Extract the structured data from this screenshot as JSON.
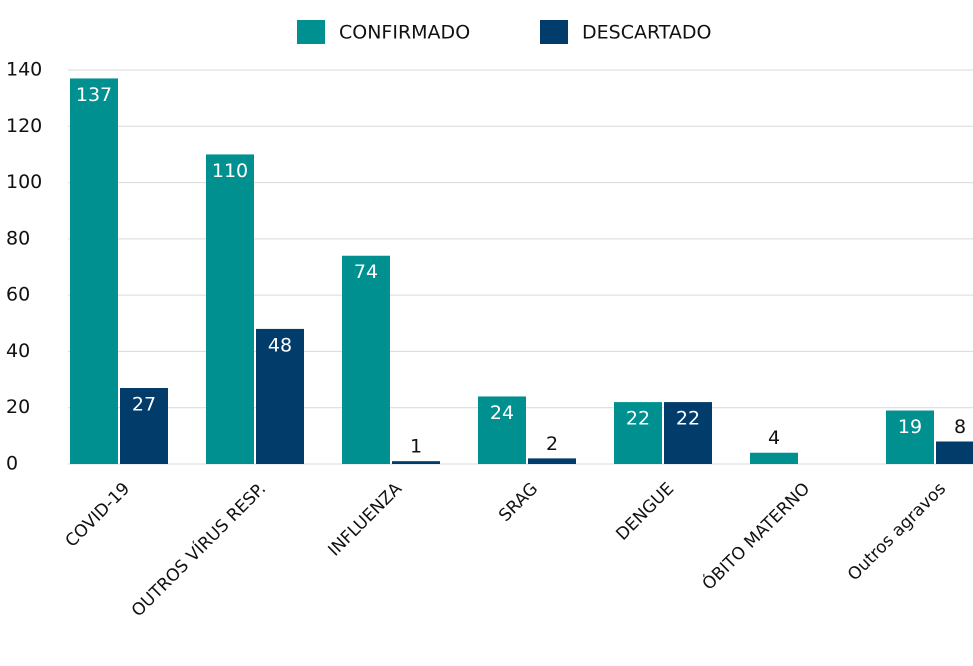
{
  "chart_data": {
    "type": "bar",
    "categories": [
      "COVID-19",
      "OUTROS VÍRUS RESP.",
      "INFLUENZA",
      "SRAG",
      "DENGUE",
      "ÓBITO MATERNO",
      "Outros agravos"
    ],
    "series": [
      {
        "name": "CONFIRMADO",
        "color": "#00908f",
        "values": [
          137,
          110,
          74,
          24,
          22,
          4,
          19
        ]
      },
      {
        "name": "DESCARTADO",
        "color": "#023c6b",
        "values": [
          27,
          48,
          1,
          2,
          22,
          null,
          8
        ]
      }
    ],
    "ylim": [
      0,
      140
    ],
    "yticks": [
      0,
      20,
      40,
      60,
      80,
      100,
      120,
      140
    ],
    "grid": true,
    "legend": "top"
  }
}
